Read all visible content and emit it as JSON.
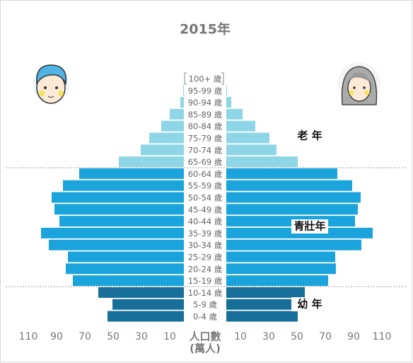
{
  "chart_data": {
    "type": "pyramid",
    "title": "2015年",
    "x_label": [
      "人口數",
      "(萬人)"
    ],
    "xlim": [
      0,
      120
    ],
    "xticks": [
      10,
      30,
      50,
      70,
      90,
      110
    ],
    "groups": [
      {
        "label": "老 年",
        "color": "#8ed6e6",
        "categories": [
          "100+ 歲",
          "95-99 歲",
          "90-94 歲",
          "85-89 歲",
          "80-84 歲",
          "75-79 歲",
          "70-74 歲",
          "65-69 歲"
        ],
        "left": [
          0,
          0.5,
          2.5,
          10,
          16,
          24.5,
          30.5,
          46
        ],
        "right": [
          0,
          0.5,
          3.5,
          11.5,
          20.5,
          30.5,
          35.5,
          50.5
        ]
      },
      {
        "label": "青壯年",
        "color": "#1ba3dc",
        "categories": [
          "60-64 歲",
          "55-59 歲",
          "50-54 歲",
          "45-49 歲",
          "40-44 歲",
          "35-39 歲",
          "30-34 歲",
          "25-29 歲",
          "20-24 歲",
          "15-19 歲"
        ],
        "left": [
          74,
          85.5,
          93.5,
          91.5,
          88,
          101,
          95.5,
          82,
          83.5,
          78.5
        ],
        "right": [
          78.5,
          89,
          95,
          93,
          91,
          103.5,
          95.5,
          77,
          77.5,
          72
        ]
      },
      {
        "label": "幼 年",
        "color": "#176e98",
        "categories": [
          "10-14 歲",
          "5-9 歲",
          "0-4 歲"
        ],
        "left": [
          60.5,
          50.5,
          54
        ],
        "right": [
          55.5,
          50.5,
          50.5
        ]
      }
    ]
  }
}
